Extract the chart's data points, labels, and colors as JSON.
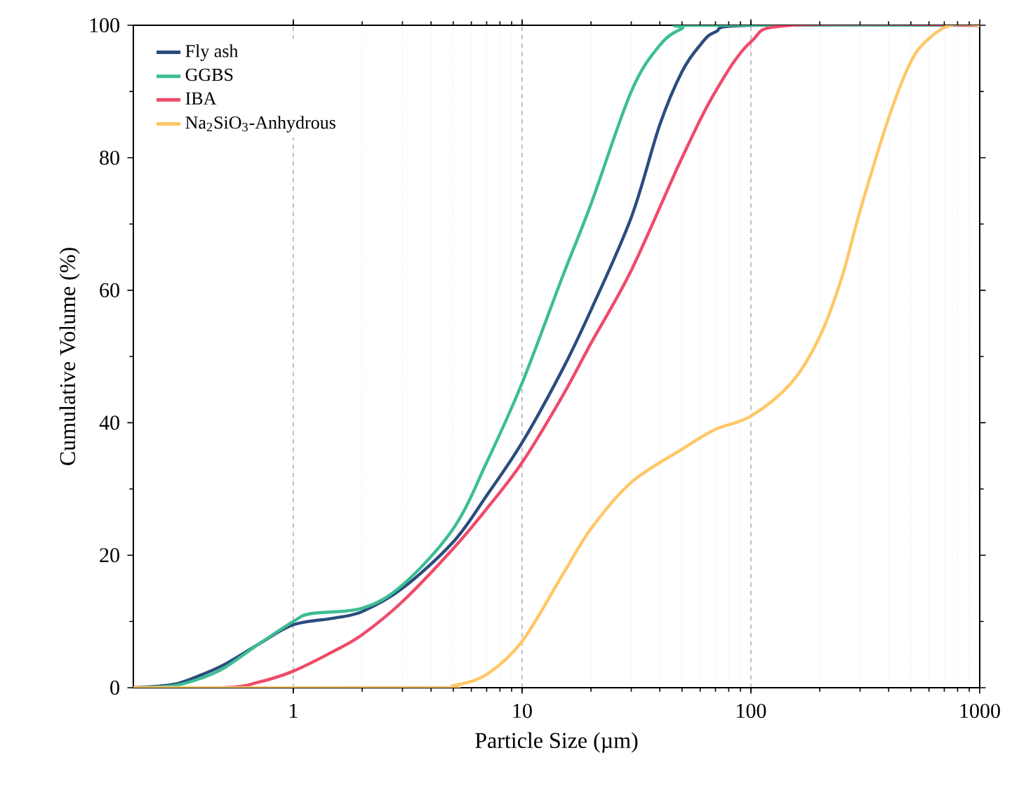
{
  "chart_data": {
    "type": "line",
    "xlabel": "Particle Size (µm)",
    "ylabel": "Cumulative Volume (%)",
    "log": "x",
    "xlim": [
      0.2,
      1000
    ],
    "ylim": [
      0,
      100
    ],
    "xticks": [
      1,
      10,
      100,
      1000
    ],
    "yticks": [
      0,
      20,
      40,
      60,
      80,
      100
    ],
    "grid": "x",
    "legend": "top left",
    "marker": "none",
    "line_style": "solid",
    "series": [
      {
        "name": "Fly ash",
        "color": "#2b4c7e",
        "x": [
          0.2,
          0.3,
          0.4,
          0.5,
          0.7,
          1,
          1.5,
          2,
          3,
          5,
          7,
          10,
          15,
          20,
          30,
          40,
          50,
          60,
          70,
          100,
          1000
        ],
        "values": [
          0,
          0.5,
          2,
          3.5,
          6.5,
          9.5,
          10.5,
          11.5,
          15,
          22,
          29,
          37,
          48,
          57,
          71,
          85,
          93,
          97,
          99,
          100,
          100
        ]
      },
      {
        "name": "GGBS",
        "color": "#3dbd94",
        "x": [
          0.2,
          0.3,
          0.4,
          0.5,
          0.7,
          1,
          1.2,
          2,
          3,
          5,
          7,
          10,
          15,
          20,
          30,
          40,
          50,
          60,
          1000
        ],
        "values": [
          0,
          0.3,
          1.5,
          3,
          6.5,
          10,
          11.2,
          12,
          15.5,
          24,
          34,
          46,
          62,
          73,
          90,
          97,
          99.5,
          100,
          100
        ]
      },
      {
        "name": "IBA",
        "color": "#ef4a6a",
        "x": [
          0.2,
          0.5,
          0.7,
          1,
          1.5,
          2,
          3,
          5,
          7,
          10,
          15,
          20,
          30,
          50,
          70,
          100,
          150,
          1000
        ],
        "values": [
          0,
          0,
          0.8,
          2.5,
          5.5,
          8,
          13,
          21,
          27,
          34,
          44,
          52,
          63,
          80,
          90,
          97.5,
          100,
          100
        ]
      },
      {
        "name": "Na$_{2}$SiO$_{3}$-Anhydrous",
        "color": "#ffc766",
        "x": [
          0.2,
          4,
          5,
          7,
          10,
          15,
          20,
          30,
          50,
          70,
          100,
          150,
          200,
          250,
          300,
          400,
          500,
          600,
          750,
          1000
        ],
        "values": [
          0,
          0,
          0.3,
          2,
          7,
          17,
          24,
          31,
          36,
          39,
          41,
          46,
          53,
          62,
          72,
          86,
          94.5,
          98,
          100,
          100
        ]
      }
    ]
  }
}
